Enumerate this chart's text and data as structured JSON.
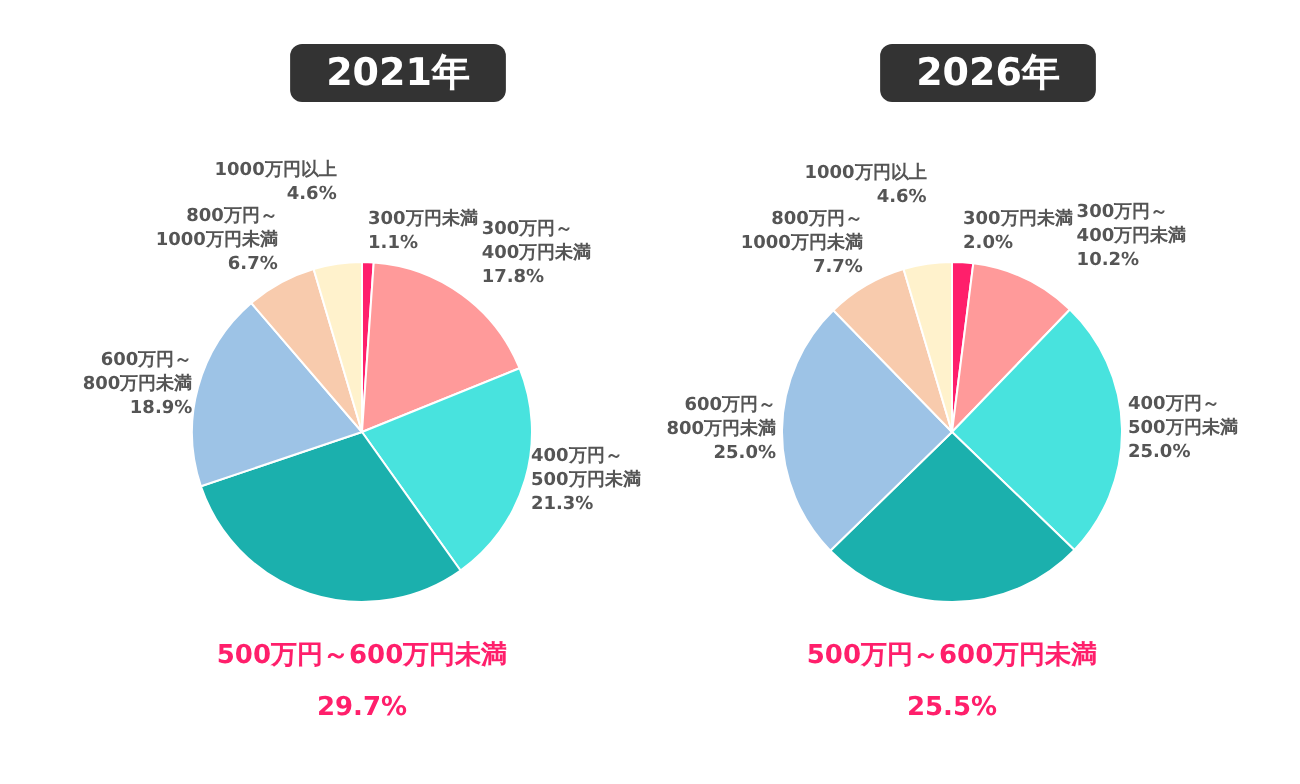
{
  "chart_data": [
    {
      "type": "pie",
      "title": "2021年",
      "categories": [
        "300万円未満",
        "300万円～400万円未満",
        "400万円～500万円未満",
        "500万円～600万円未満",
        "600万円～800万円未満",
        "800万円～1000万円未満",
        "1000万円以上"
      ],
      "values": [
        1.1,
        17.8,
        21.3,
        29.7,
        18.9,
        6.7,
        4.6
      ],
      "colors": [
        "#ff1f6b",
        "#ff9a9a",
        "#48e3de",
        "#1bb0ad",
        "#9dc3e6",
        "#f8cbad",
        "#fff2cc"
      ],
      "value_labels": [
        "1.1%",
        "17.8%",
        "21.3%",
        "29.7%",
        "18.9%",
        "6.7%",
        "4.6%"
      ]
    },
    {
      "type": "pie",
      "title": "2026年",
      "categories": [
        "300万円未満",
        "300万円～400万円未満",
        "400万円～500万円未満",
        "500万円～600万円未満",
        "600万円～800万円未満",
        "800万円～1000万円未満",
        "1000万円以上"
      ],
      "values": [
        2.0,
        10.2,
        25.0,
        25.5,
        25.0,
        7.7,
        4.6
      ],
      "colors": [
        "#ff1f6b",
        "#ff9a9a",
        "#48e3de",
        "#1bb0ad",
        "#9dc3e6",
        "#f8cbad",
        "#fff2cc"
      ],
      "value_labels": [
        "2.0%",
        "10.2%",
        "25.0%",
        "25.5%",
        "25.0%",
        "7.7%",
        "4.6%"
      ]
    }
  ]
}
